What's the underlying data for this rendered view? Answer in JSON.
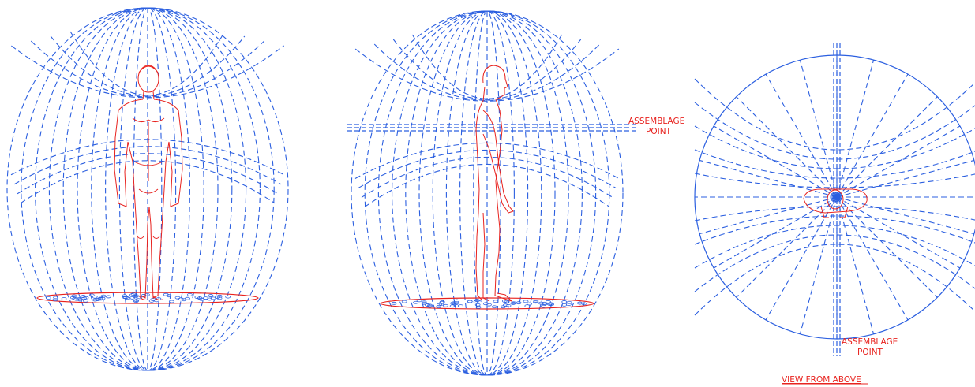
{
  "colors": {
    "field": "#2b5fe0",
    "figure": "#e8231f",
    "background": "#ffffff"
  },
  "left_view": {
    "figure": "human-figure-front-view"
  },
  "middle_view": {
    "figure": "human-figure-side-view",
    "label_line1": "ASSEMBLAGE",
    "label_line2": "POINT"
  },
  "right_view": {
    "label_line1": "ASSEMBLAGE",
    "label_line2": "POINT",
    "caption": "VIEW FROM ABOVE"
  }
}
